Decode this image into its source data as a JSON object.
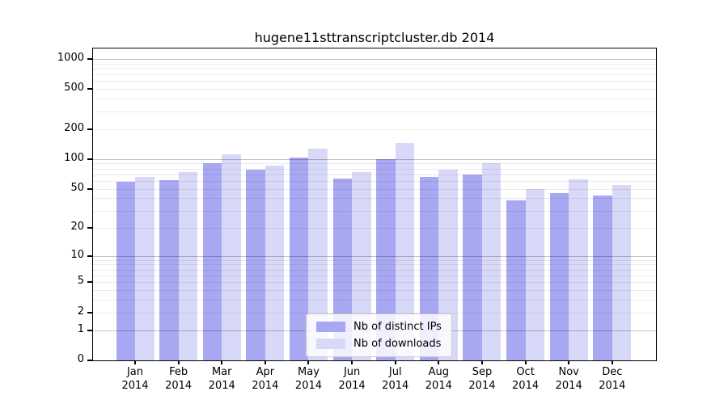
{
  "title": "hugene11sttranscriptcluster.db 2014",
  "legend": {
    "items": [
      {
        "label": "Nb of distinct IPs",
        "color": "#a8a8f2"
      },
      {
        "label": "Nb of downloads",
        "color": "#d8d8f8"
      }
    ]
  },
  "colors": {
    "background": "#ffffff",
    "axis": "#000000",
    "grid_major": "#c2c2c2",
    "grid_minor": "#ebebeb",
    "bar_distinct_ips": "#a8a8f2",
    "bar_downloads": "#d8d8f8"
  },
  "chart_data": {
    "type": "bar",
    "title": "hugene11sttranscriptcluster.db 2014",
    "xlabel": "",
    "ylabel": "",
    "categories": [
      "Jan 2014",
      "Feb 2014",
      "Mar 2014",
      "Apr 2014",
      "May 2014",
      "Jun 2014",
      "Jul 2014",
      "Aug 2014",
      "Sep 2014",
      "Oct 2014",
      "Nov 2014",
      "Dec 2014"
    ],
    "series": [
      {
        "name": "Nb of distinct IPs",
        "color": "#a8a8f2",
        "values": [
          59,
          61,
          91,
          78,
          103,
          63,
          100,
          66,
          70,
          38,
          45,
          43
        ]
      },
      {
        "name": "Nb of downloads",
        "color": "#d8d8f8",
        "values": [
          66,
          74,
          112,
          86,
          128,
          74,
          145,
          78,
          90,
          50,
          62,
          55
        ]
      }
    ],
    "y_scale": "log10(value+1)",
    "y_ticks": [
      0,
      1,
      2,
      5,
      10,
      20,
      50,
      100,
      200,
      500,
      1000
    ],
    "y_max": 1270,
    "grid": true,
    "legend_position": "bottom-center-inside"
  }
}
